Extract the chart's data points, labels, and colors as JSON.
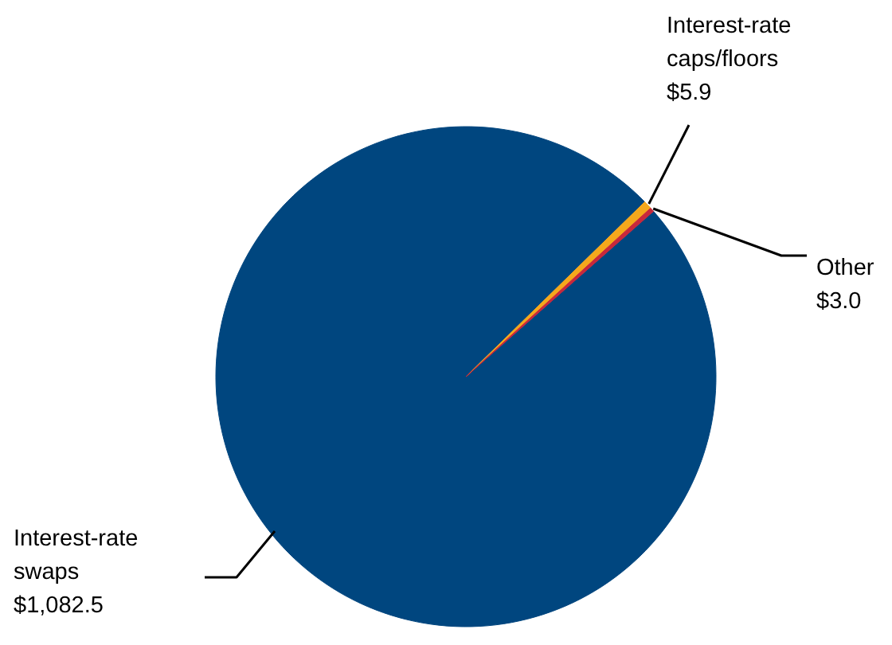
{
  "chart_data": {
    "type": "pie",
    "categories": [
      "Interest-rate swaps",
      "Interest-rate caps/floors",
      "Other"
    ],
    "values": [
      1082.5,
      5.9,
      3.0
    ],
    "colors": [
      "#00467f",
      "#f5a81c",
      "#c8283c"
    ],
    "value_labels": [
      "$1,082.5",
      "$5.9",
      "$3.0"
    ]
  }
}
